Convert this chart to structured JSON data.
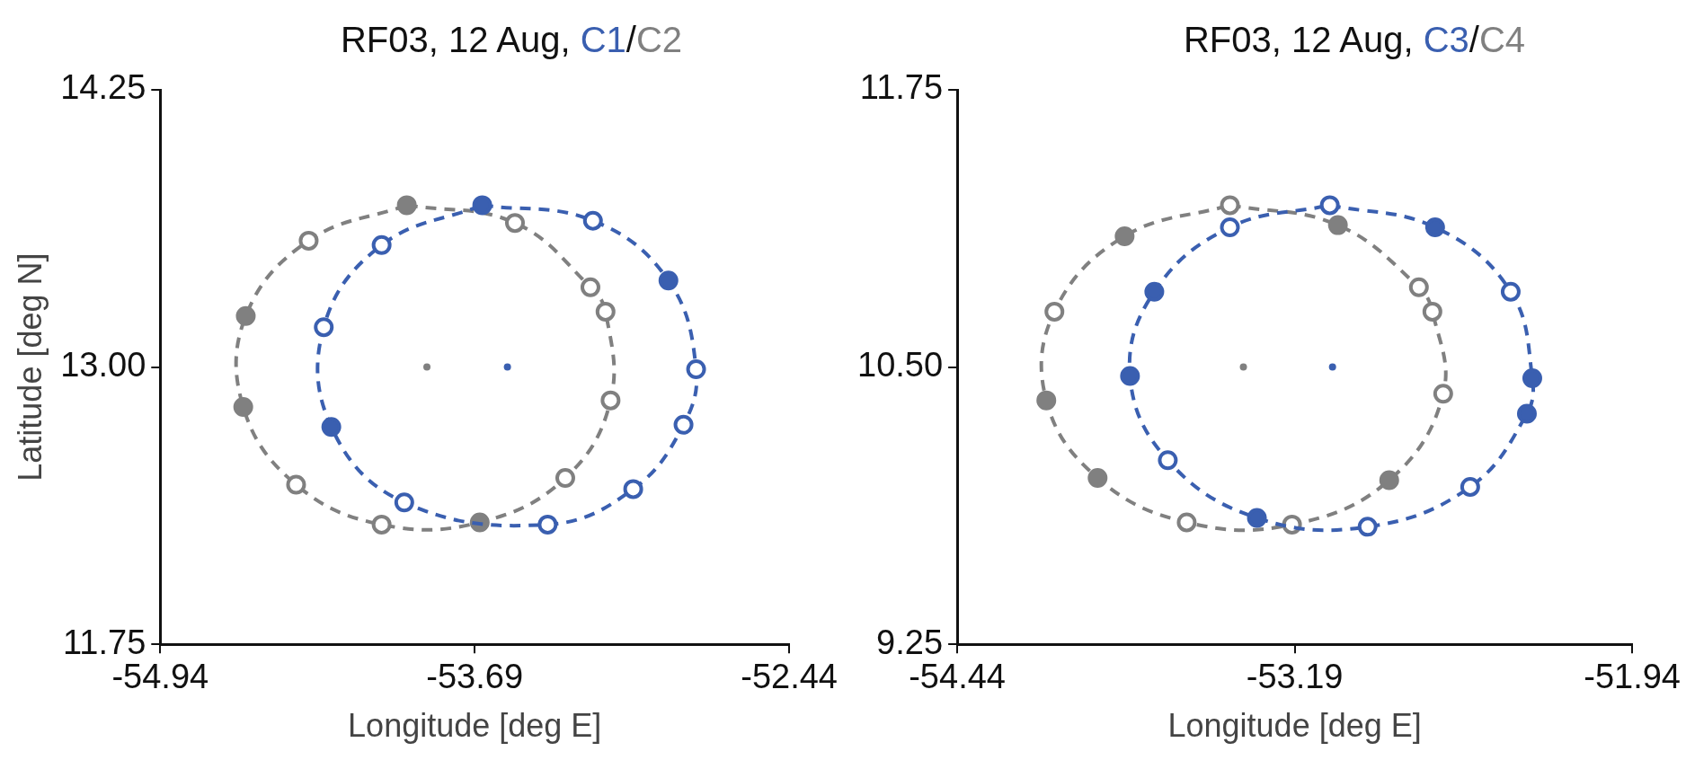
{
  "chart_data": [
    {
      "type": "scatter",
      "title": "RF03, 12 Aug, C1/C2",
      "xlabel": "Longitude [deg E]",
      "ylabel": "Latitude [deg N]",
      "xlim": [
        -54.94,
        -52.44
      ],
      "xticks": [
        -54.94,
        -53.69,
        -52.44
      ],
      "ylim": [
        11.75,
        14.25
      ],
      "yticks": [
        11.75,
        {
          "value": 13,
          "label": "13.00"
        },
        14.25
      ],
      "grid": false,
      "legend": false,
      "marker": "circle",
      "series": [
        {
          "line_style": "dashed",
          "color": "#3a5fb0",
          "x": [
            -53.66,
            -53.22,
            -52.92,
            -52.81,
            -52.86,
            -53.06,
            -53.4,
            -53.97,
            -54.26,
            -54.29,
            -54.06
          ],
          "values": [
            13.73,
            13.66,
            13.39,
            12.99,
            12.74,
            12.45,
            12.29,
            12.39,
            12.73,
            13.18,
            13.55
          ],
          "colors": [
            "#3a5fb0",
            "#ffffff",
            "#3a5fb0",
            "#ffffff",
            "#ffffff",
            "#ffffff",
            "#ffffff",
            "#ffffff",
            "#3a5fb0",
            "#ffffff",
            "#ffffff"
          ]
        },
        {
          "line_style": "dashed",
          "color": "#808080",
          "x": [
            -53.96,
            -53.53,
            -53.23,
            -53.17,
            -53.15,
            -53.33,
            -53.67,
            -54.06,
            -54.4,
            -54.61,
            -54.6,
            -54.35
          ],
          "values": [
            13.73,
            13.65,
            13.36,
            13.25,
            12.85,
            12.5,
            12.3,
            12.29,
            12.47,
            12.82,
            13.23,
            13.57
          ],
          "colors": [
            "#808080",
            "#ffffff",
            "#ffffff",
            "#ffffff",
            "#ffffff",
            "#ffffff",
            "#808080",
            "#ffffff",
            "#ffffff",
            "#808080",
            "#808080",
            "#ffffff"
          ]
        },
        {
          "x": [
            -53.88,
            -53.56
          ],
          "values": [
            13,
            13
          ],
          "colors": [
            "#808080",
            "#3a5fb0"
          ]
        }
      ]
    },
    {
      "type": "scatter",
      "title": "RF03, 12 Aug, C3/C4",
      "xlabel": "Longitude [deg E]",
      "xlim": [
        -54.44,
        -51.94
      ],
      "xticks": [
        -54.44,
        -53.19,
        -51.94
      ],
      "ylim": [
        9.25,
        11.75
      ],
      "yticks": [
        9.25,
        {
          "value": 10.5,
          "label": "10.50"
        },
        11.75
      ],
      "grid": false,
      "legend": false,
      "marker": "circle",
      "series": [
        {
          "line_style": "dashed",
          "color": "#3a5fb0",
          "x": [
            -53.06,
            -52.67,
            -52.39,
            -52.31,
            -52.33,
            -52.54,
            -52.92,
            -53.33,
            -53.66,
            -53.8,
            -53.71,
            -53.43
          ],
          "values": [
            11.23,
            11.13,
            10.84,
            10.45,
            10.29,
            9.96,
            9.78,
            9.82,
            10.08,
            10.46,
            10.84,
            11.13
          ],
          "colors": [
            "#ffffff",
            "#3a5fb0",
            "#ffffff",
            "#3a5fb0",
            "#3a5fb0",
            "#ffffff",
            "#ffffff",
            "#3a5fb0",
            "#ffffff",
            "#3a5fb0",
            "#3a5fb0",
            "#ffffff"
          ]
        },
        {
          "line_style": "dashed",
          "color": "#808080",
          "x": [
            -53.43,
            -53.03,
            -52.73,
            -52.68,
            -52.64,
            -52.84,
            -53.2,
            -53.59,
            -53.92,
            -54.11,
            -54.08,
            -53.82
          ],
          "values": [
            11.23,
            11.14,
            10.86,
            10.75,
            10.38,
            9.99,
            9.79,
            9.8,
            10,
            10.35,
            10.75,
            11.09
          ],
          "colors": [
            "#ffffff",
            "#808080",
            "#ffffff",
            "#ffffff",
            "#ffffff",
            "#808080",
            "#ffffff",
            "#ffffff",
            "#808080",
            "#808080",
            "#ffffff",
            "#808080"
          ]
        },
        {
          "x": [
            -53.38,
            -53.05
          ],
          "values": [
            10.5,
            10.5
          ],
          "colors": [
            "#808080",
            "#3a5fb0"
          ]
        }
      ]
    }
  ]
}
